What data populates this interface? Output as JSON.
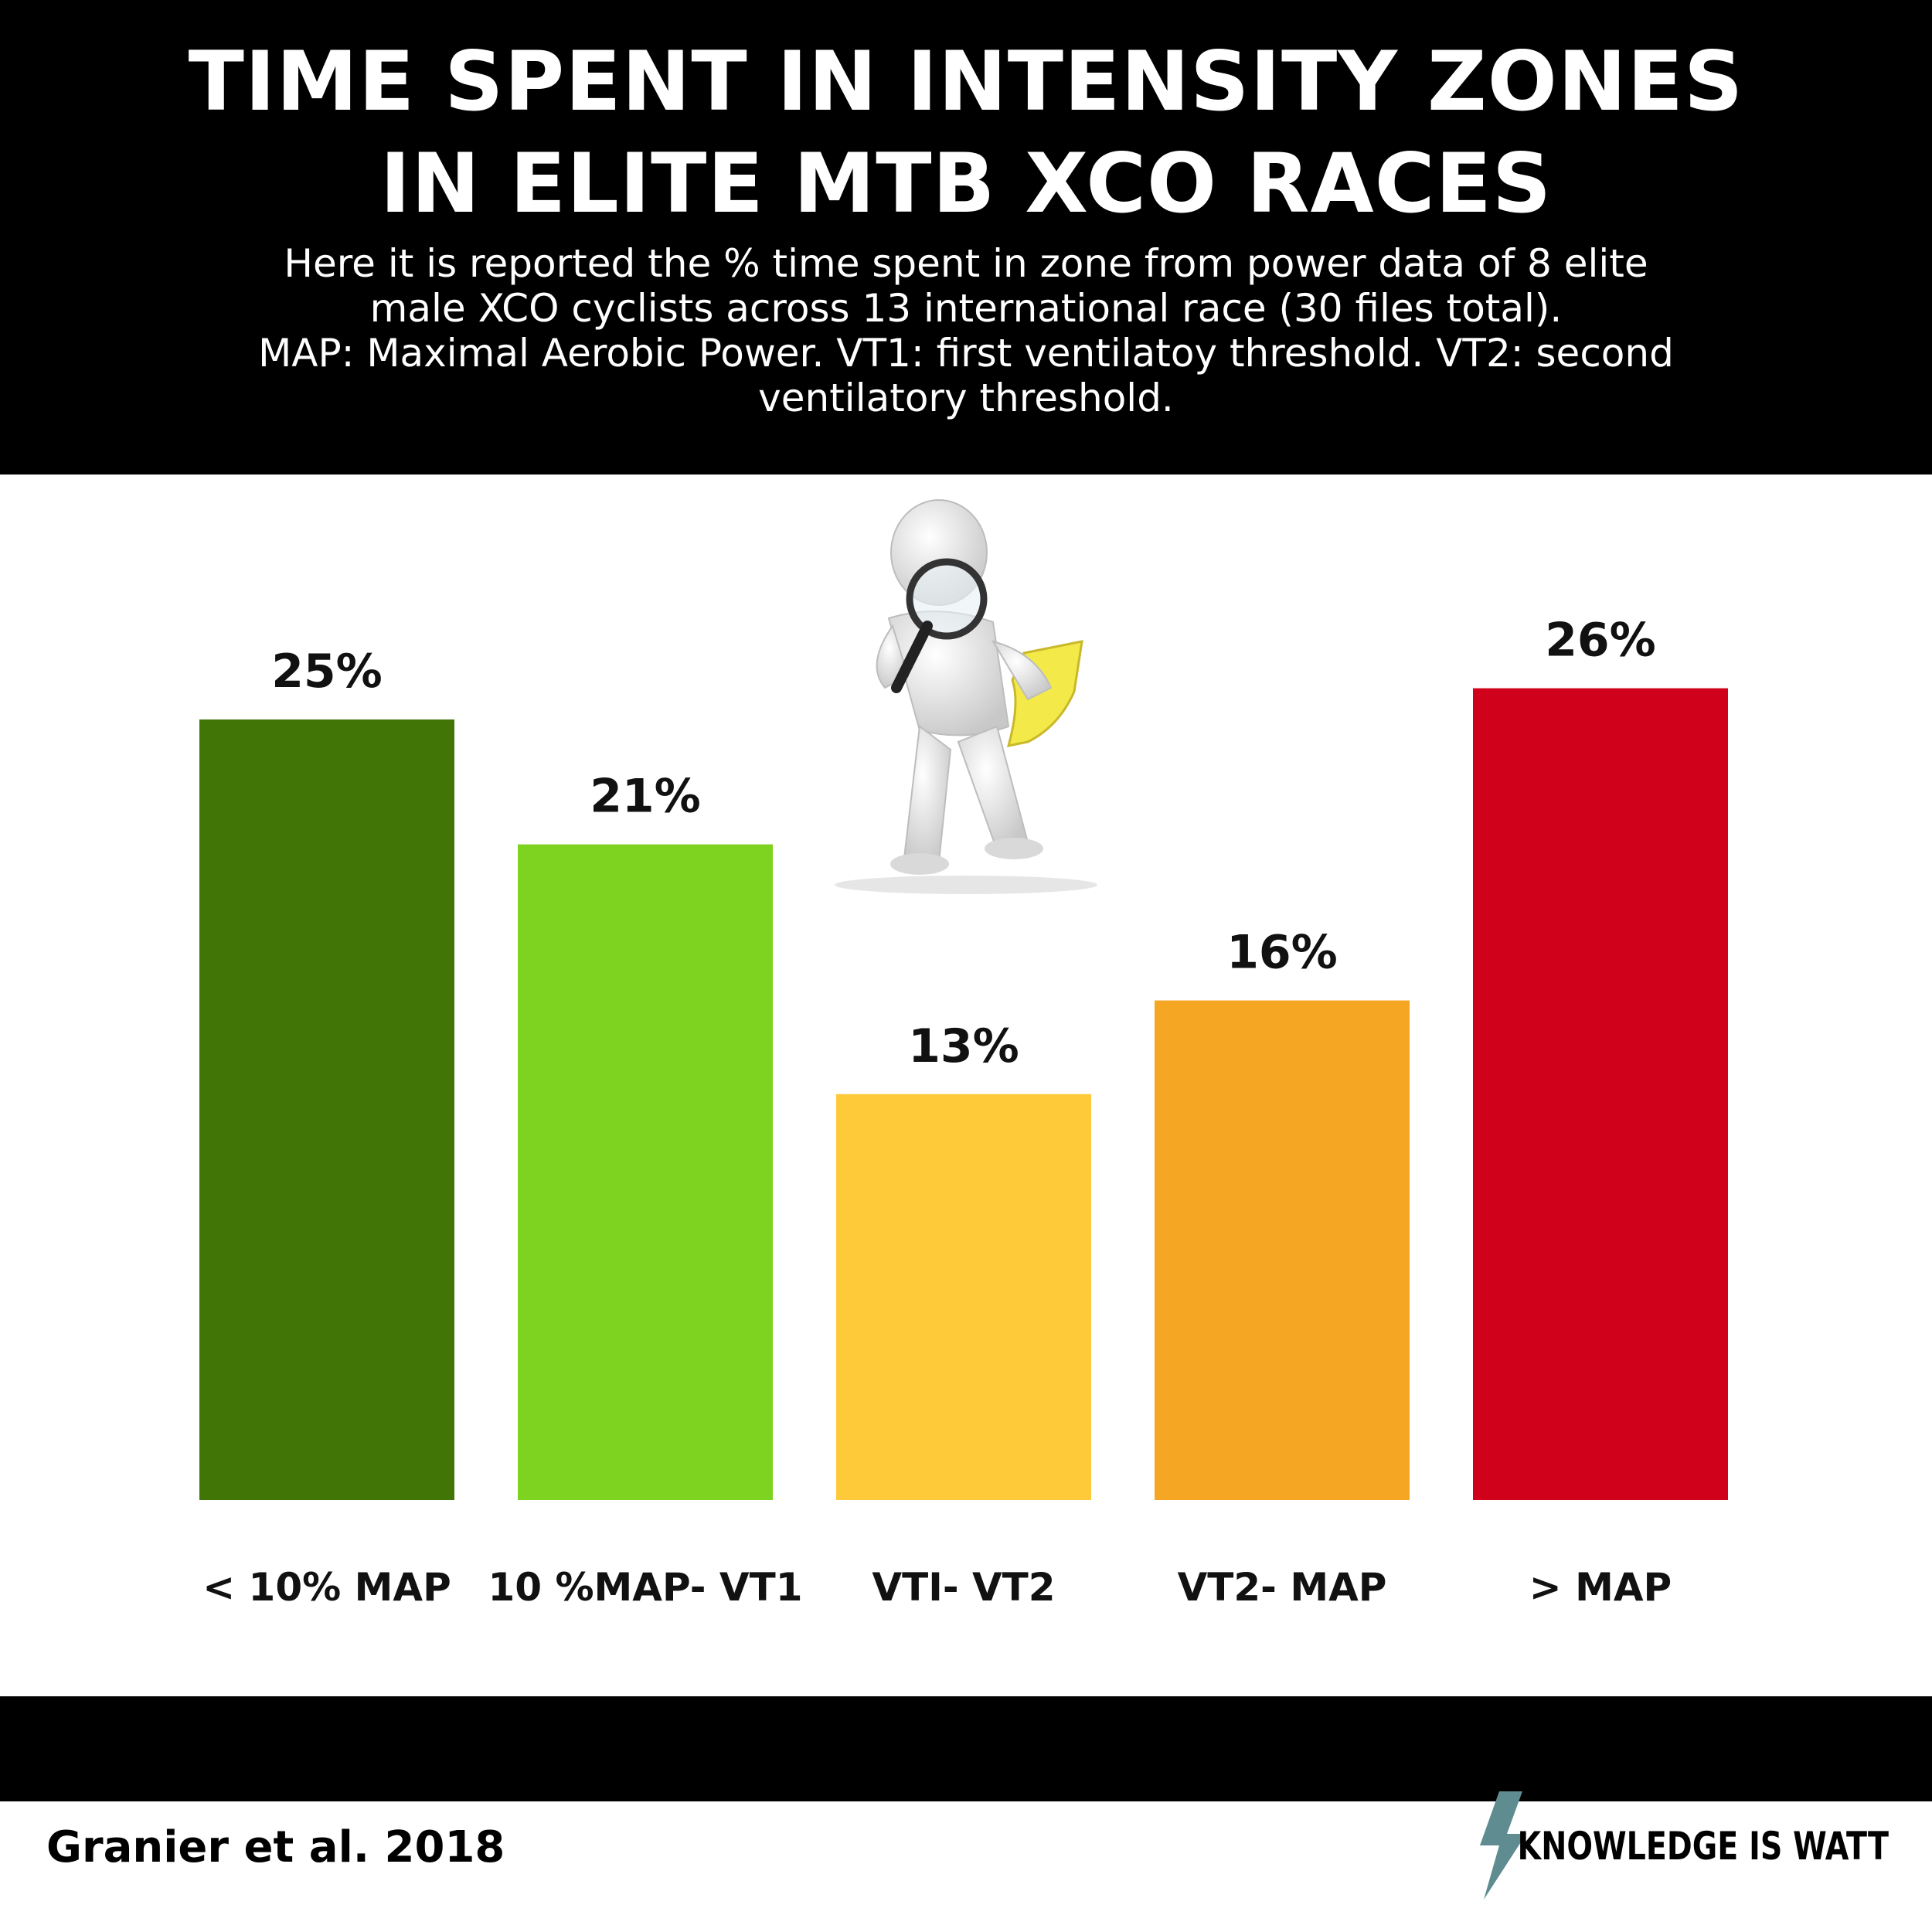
{
  "header": {
    "title_lines": [
      "TIME SPENT IN INTENSITY ZONES",
      "IN ELITE MTB XCO RACES"
    ],
    "subtitle_lines": [
      "Here it is reported the % time spent in zone from power data of 8 elite",
      "male XCO cyclists across 13 international race (30 files total).",
      "MAP: Maximal Aerobic Power. VT1: first ventilatoy threshold. VT2: second",
      "ventilatory threshold."
    ]
  },
  "chart_data": {
    "type": "bar",
    "categories": [
      "< 10% MAP",
      "10 %MAP- VT1",
      "VTI- VT2",
      "VT2- MAP",
      "> MAP"
    ],
    "values": [
      25,
      21,
      13,
      16,
      26
    ],
    "value_labels": [
      "25%",
      "21%",
      "13%",
      "16%",
      "26%"
    ],
    "colors": [
      "#417505",
      "#7ED321",
      "#FFCA3A",
      "#F5A623",
      "#D0021B"
    ],
    "ylim": [
      0,
      30
    ],
    "grid": false,
    "legend": "none"
  },
  "footer": {
    "source": "Granier et al. 2018",
    "brand": "KNOWLEDGE IS WATT",
    "brand_icon": "lightning-bolt-icon",
    "brand_icon_color": "#5E8C91"
  }
}
